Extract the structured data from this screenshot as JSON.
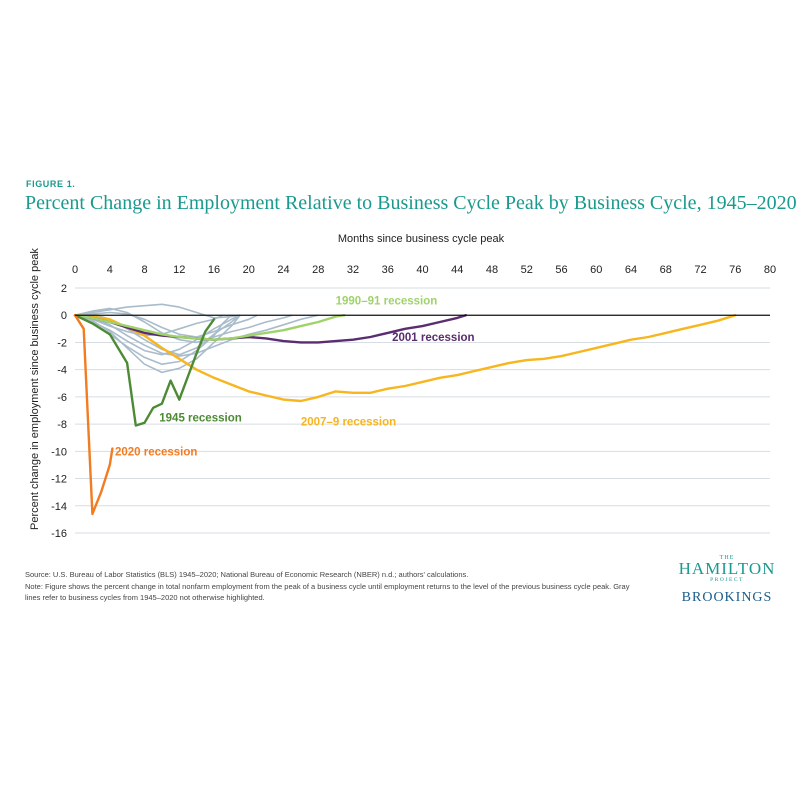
{
  "figure_label": "FIGURE 1.",
  "title": "Percent Change in Employment Relative to Business Cycle Peak by Business Cycle, 1945–2020",
  "source_line": "Source: U.S. Bureau of Labor Statistics (BLS) 1945–2020; National Bureau of Economic Research (NBER) n.d.; authors' calculations.",
  "note_line": "Note: Figure shows the percent change in total nonfarm employment from the peak of a business cycle until employment returns to the level of the previous business cycle peak. Gray lines refer to business cycles from 1945–2020 not otherwise highlighted.",
  "logo": {
    "the": "THE",
    "hamilton": "HAMILTON",
    "project": "PROJECT",
    "brookings": "BROOKINGS"
  },
  "colors": {
    "title": "#1a9a8e",
    "gray": "#a9bccb",
    "c1990": "#9fd36a",
    "c2001": "#5b2c6f",
    "c2007": "#f7b51e",
    "c1945": "#4d8a35",
    "c2020": "#f27c22"
  },
  "chart_data": {
    "type": "line",
    "xlabel": "Months since business cycle peak",
    "ylabel": "Percent change in employment since business cycle peak",
    "x_axis_position": "top",
    "xlim": [
      0,
      80
    ],
    "ylim": [
      -16,
      2
    ],
    "xticks": [
      0,
      4,
      8,
      12,
      16,
      20,
      24,
      28,
      32,
      36,
      40,
      44,
      48,
      52,
      56,
      60,
      64,
      68,
      72,
      76,
      80
    ],
    "yticks": [
      2,
      0,
      -2,
      -4,
      -6,
      -8,
      -10,
      -12,
      -14,
      -16
    ],
    "grid": true,
    "series": [
      {
        "name": "1990–91 recession",
        "color": "#9fd36a",
        "label_at": [
          30,
          0.8
        ],
        "points": [
          [
            0,
            0
          ],
          [
            2,
            -0.2
          ],
          [
            4,
            -0.5
          ],
          [
            6,
            -0.8
          ],
          [
            8,
            -1.1
          ],
          [
            10,
            -1.4
          ],
          [
            12,
            -1.6
          ],
          [
            14,
            -1.7
          ],
          [
            16,
            -1.8
          ],
          [
            18,
            -1.7
          ],
          [
            20,
            -1.5
          ],
          [
            22,
            -1.3
          ],
          [
            24,
            -1.1
          ],
          [
            26,
            -0.8
          ],
          [
            28,
            -0.5
          ],
          [
            30,
            -0.1
          ],
          [
            31,
            0
          ]
        ]
      },
      {
        "name": "2001 recession",
        "color": "#5b2c6f",
        "label_at": [
          36.5,
          -1.9
        ],
        "points": [
          [
            0,
            0
          ],
          [
            2,
            -0.2
          ],
          [
            4,
            -0.5
          ],
          [
            6,
            -0.9
          ],
          [
            8,
            -1.3
          ],
          [
            10,
            -1.5
          ],
          [
            12,
            -1.6
          ],
          [
            14,
            -1.7
          ],
          [
            16,
            -1.8
          ],
          [
            18,
            -1.7
          ],
          [
            20,
            -1.6
          ],
          [
            22,
            -1.7
          ],
          [
            24,
            -1.9
          ],
          [
            26,
            -2.0
          ],
          [
            28,
            -2.0
          ],
          [
            30,
            -1.9
          ],
          [
            32,
            -1.8
          ],
          [
            34,
            -1.6
          ],
          [
            36,
            -1.3
          ],
          [
            38,
            -1.0
          ],
          [
            40,
            -0.8
          ],
          [
            42,
            -0.5
          ],
          [
            44,
            -0.2
          ],
          [
            45,
            0
          ]
        ]
      },
      {
        "name": "2007–9 recession",
        "color": "#f7b51e",
        "label_at": [
          26,
          -8.1
        ],
        "points": [
          [
            0,
            0
          ],
          [
            2,
            -0.1
          ],
          [
            4,
            -0.3
          ],
          [
            6,
            -0.9
          ],
          [
            8,
            -1.5
          ],
          [
            10,
            -2.4
          ],
          [
            12,
            -3.2
          ],
          [
            14,
            -4.0
          ],
          [
            16,
            -4.6
          ],
          [
            18,
            -5.1
          ],
          [
            20,
            -5.6
          ],
          [
            22,
            -5.9
          ],
          [
            24,
            -6.2
          ],
          [
            26,
            -6.3
          ],
          [
            28,
            -6.0
          ],
          [
            30,
            -5.6
          ],
          [
            32,
            -5.7
          ],
          [
            34,
            -5.7
          ],
          [
            36,
            -5.4
          ],
          [
            38,
            -5.2
          ],
          [
            40,
            -4.9
          ],
          [
            42,
            -4.6
          ],
          [
            44,
            -4.4
          ],
          [
            46,
            -4.1
          ],
          [
            48,
            -3.8
          ],
          [
            50,
            -3.5
          ],
          [
            52,
            -3.3
          ],
          [
            54,
            -3.2
          ],
          [
            56,
            -3.0
          ],
          [
            58,
            -2.7
          ],
          [
            60,
            -2.4
          ],
          [
            62,
            -2.1
          ],
          [
            64,
            -1.8
          ],
          [
            66,
            -1.6
          ],
          [
            68,
            -1.3
          ],
          [
            70,
            -1.0
          ],
          [
            72,
            -0.7
          ],
          [
            74,
            -0.4
          ],
          [
            76,
            0
          ]
        ]
      },
      {
        "name": "1945 recession",
        "color": "#4d8a35",
        "label_at": [
          9.7,
          -7.8
        ],
        "points": [
          [
            0,
            0
          ],
          [
            2,
            -0.6
          ],
          [
            4,
            -1.4
          ],
          [
            6,
            -3.5
          ],
          [
            7,
            -8.1
          ],
          [
            8,
            -7.9
          ],
          [
            9,
            -6.8
          ],
          [
            10,
            -6.5
          ],
          [
            11,
            -4.8
          ],
          [
            12,
            -6.2
          ],
          [
            13,
            -4.5
          ],
          [
            14,
            -2.8
          ],
          [
            15,
            -1.2
          ],
          [
            16,
            -0.3
          ]
        ]
      },
      {
        "name": "2020 recession",
        "color": "#f27c22",
        "label_at": [
          4.6,
          -10.3
        ],
        "points": [
          [
            0,
            0
          ],
          [
            1,
            -1.0
          ],
          [
            2,
            -14.6
          ],
          [
            3,
            -13.0
          ],
          [
            4,
            -11.0
          ],
          [
            4.3,
            -9.8
          ]
        ]
      }
    ],
    "gray_series": [
      [
        [
          0,
          0
        ],
        [
          2,
          0.2
        ],
        [
          4,
          0.4
        ],
        [
          6,
          0.6
        ],
        [
          8,
          0.7
        ],
        [
          10,
          0.8
        ],
        [
          12,
          0.6
        ],
        [
          14,
          0.2
        ],
        [
          16,
          -0.2
        ],
        [
          18,
          -0.1
        ],
        [
          19,
          0
        ]
      ],
      [
        [
          0,
          0
        ],
        [
          2,
          0.1
        ],
        [
          4,
          -0.3
        ],
        [
          6,
          -1.0
        ],
        [
          8,
          -1.8
        ],
        [
          10,
          -2.5
        ],
        [
          12,
          -2.9
        ],
        [
          14,
          -2.4
        ],
        [
          16,
          -1.4
        ],
        [
          18,
          -0.5
        ],
        [
          19,
          0
        ]
      ],
      [
        [
          0,
          0
        ],
        [
          2,
          -0.6
        ],
        [
          4,
          -1.4
        ],
        [
          6,
          -2.3
        ],
        [
          8,
          -3.1
        ],
        [
          10,
          -3.6
        ],
        [
          12,
          -3.4
        ],
        [
          14,
          -2.6
        ],
        [
          16,
          -1.5
        ],
        [
          17,
          -0.6
        ],
        [
          18,
          0
        ]
      ],
      [
        [
          0,
          0
        ],
        [
          2,
          -0.4
        ],
        [
          4,
          -1.2
        ],
        [
          6,
          -2.4
        ],
        [
          8,
          -3.6
        ],
        [
          10,
          -4.2
        ],
        [
          12,
          -3.9
        ],
        [
          14,
          -3.2
        ],
        [
          16,
          -2.0
        ],
        [
          18,
          -0.8
        ],
        [
          19,
          0
        ]
      ],
      [
        [
          0,
          0
        ],
        [
          2,
          -0.2
        ],
        [
          4,
          -0.7
        ],
        [
          6,
          -1.5
        ],
        [
          8,
          -2.2
        ],
        [
          10,
          -2.8
        ],
        [
          12,
          -3.0
        ],
        [
          14,
          -2.8
        ],
        [
          16,
          -2.3
        ],
        [
          18,
          -1.8
        ],
        [
          20,
          -1.4
        ],
        [
          22,
          -1.1
        ],
        [
          24,
          -0.7
        ],
        [
          26,
          -0.3
        ],
        [
          28,
          0
        ]
      ],
      [
        [
          0,
          0
        ],
        [
          2,
          0.1
        ],
        [
          4,
          0.2
        ],
        [
          6,
          0.1
        ],
        [
          8,
          -0.3
        ],
        [
          10,
          -0.9
        ],
        [
          12,
          -1.4
        ],
        [
          14,
          -1.6
        ],
        [
          16,
          -1.2
        ],
        [
          18,
          -0.7
        ],
        [
          20,
          -0.3
        ],
        [
          21,
          0
        ]
      ],
      [
        [
          0,
          0
        ],
        [
          2,
          -0.3
        ],
        [
          4,
          -0.8
        ],
        [
          6,
          -1.2
        ],
        [
          8,
          -1.5
        ],
        [
          10,
          -1.4
        ],
        [
          12,
          -1.0
        ],
        [
          14,
          -0.6
        ],
        [
          16,
          -0.3
        ],
        [
          17,
          0
        ]
      ],
      [
        [
          0,
          0
        ],
        [
          2,
          -0.5
        ],
        [
          4,
          -1.1
        ],
        [
          6,
          -1.9
        ],
        [
          8,
          -2.6
        ],
        [
          10,
          -2.9
        ],
        [
          12,
          -2.5
        ],
        [
          14,
          -1.8
        ],
        [
          16,
          -1.0
        ],
        [
          18,
          -0.3
        ],
        [
          19,
          0
        ]
      ],
      [
        [
          0,
          0
        ],
        [
          2,
          0.3
        ],
        [
          4,
          0.5
        ],
        [
          6,
          0.2
        ],
        [
          8,
          -0.5
        ],
        [
          10,
          -1.3
        ],
        [
          12,
          -1.8
        ],
        [
          14,
          -2.0
        ],
        [
          16,
          -1.6
        ],
        [
          18,
          -1.2
        ],
        [
          20,
          -0.9
        ],
        [
          22,
          -0.5
        ],
        [
          24,
          -0.2
        ],
        [
          25,
          0
        ]
      ]
    ]
  }
}
